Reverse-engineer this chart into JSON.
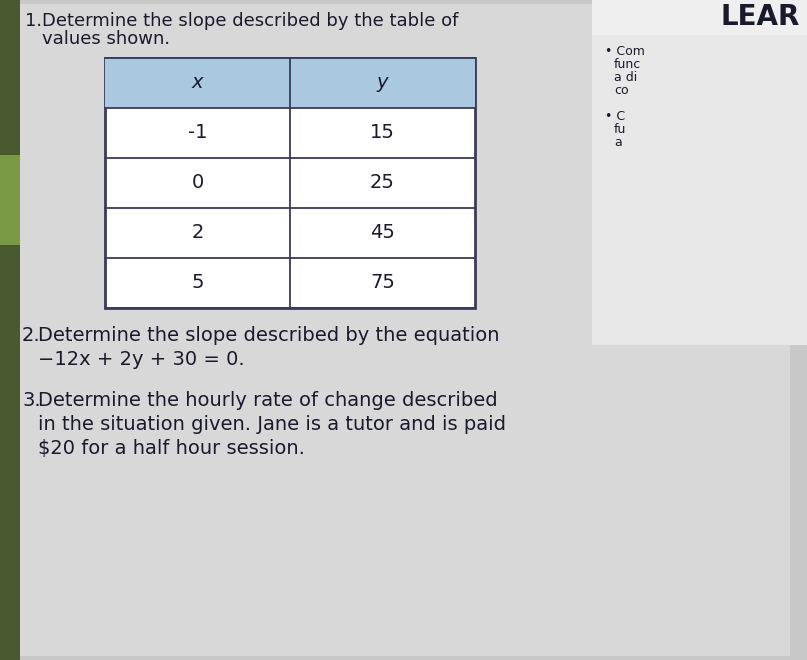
{
  "background_color": "#c8c8c8",
  "page_bg": "#d8d8d8",
  "title_lear": "LEAR",
  "q1_number": "1.",
  "q1_line1": "Determine the slope described by the table of",
  "q1_line2": "values shown.",
  "table_header_bg": "#aac8e0",
  "table_header_x": "x",
  "table_header_y": "y",
  "table_x": [
    "-1",
    "0",
    "2",
    "5"
  ],
  "table_y": [
    "15",
    "25",
    "45",
    "75"
  ],
  "table_border_color": "#3a3a5a",
  "q2_number": "2.",
  "q2_line1": "Determine the slope described by the equation",
  "q2_line2": "−12x + 2y + 30 = 0.",
  "q3_number": "3.",
  "q3_line1": "Determine the hourly rate of change described",
  "q3_line2": "in the situation given. Jane is a tutor and is paid",
  "q3_line3": "$20 for a half hour session.",
  "bullet1_lines": [
    "Com",
    "func",
    "a di",
    "co"
  ],
  "bullet2_lines": [
    "C",
    "fu",
    "a"
  ],
  "text_color": "#1a1a2e",
  "spine_color": "#4a5a30",
  "spine_accent": "#7a9a45",
  "font_size_main": 13,
  "font_size_table": 13,
  "font_size_lear": 20,
  "font_size_bullet": 9
}
